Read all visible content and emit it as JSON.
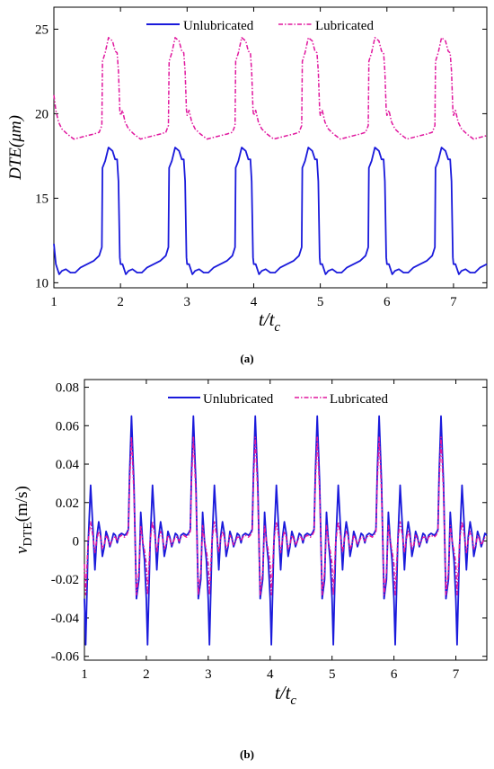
{
  "chart_data": [
    {
      "type": "line",
      "panel_label": "(a)",
      "ylabel": "DTE(μm)",
      "xlabel_main": "t/t",
      "xlabel_sub": "c",
      "xlim": [
        1,
        7.5
      ],
      "ylim": [
        9.7,
        26.3
      ],
      "xticks": [
        1,
        2,
        3,
        4,
        5,
        6,
        7
      ],
      "yticks": [
        10,
        15,
        20,
        25
      ],
      "legend": "top",
      "grid": false,
      "series": [
        {
          "name": "Unlubricated",
          "color": "#1a1adb",
          "dash": "solid",
          "period": 1,
          "x": [
            1.0,
            1.03,
            1.08,
            1.12,
            1.18,
            1.25,
            1.32,
            1.4,
            1.5,
            1.6,
            1.68,
            1.72,
            1.73,
            1.77,
            1.82,
            1.88,
            1.92,
            1.95,
            1.97,
            1.99,
            2.0
          ],
          "y": [
            12.3,
            11.1,
            10.5,
            10.7,
            10.8,
            10.6,
            10.6,
            10.9,
            11.1,
            11.3,
            11.6,
            12.1,
            16.8,
            17.2,
            18.0,
            17.8,
            17.3,
            17.3,
            16.0,
            11.5,
            11.1
          ]
        },
        {
          "name": "Lubricated",
          "color": "#e0179e",
          "dash": "5,2,1.5,2",
          "period": 1,
          "x": [
            1.0,
            1.03,
            1.07,
            1.12,
            1.2,
            1.3,
            1.4,
            1.5,
            1.6,
            1.68,
            1.72,
            1.73,
            1.77,
            1.82,
            1.88,
            1.92,
            1.95,
            1.97,
            1.99,
            2.0
          ],
          "y": [
            21.1,
            20.2,
            19.5,
            19.1,
            18.8,
            18.5,
            18.6,
            18.7,
            18.8,
            18.9,
            19.3,
            23.1,
            23.6,
            24.5,
            24.3,
            23.7,
            23.6,
            22.5,
            20.2,
            19.9
          ]
        }
      ]
    },
    {
      "type": "line",
      "panel_label": "(b)",
      "ylabel": "v",
      "ylabel_sub": "DTE",
      "ylabel_unit": "(m/s)",
      "xlabel_main": "t/t",
      "xlabel_sub": "c",
      "xlim": [
        1,
        7.5
      ],
      "ylim": [
        -0.062,
        0.084
      ],
      "xticks": [
        1,
        2,
        3,
        4,
        5,
        6,
        7
      ],
      "yticks": [
        -0.06,
        -0.04,
        -0.02,
        0,
        0.02,
        0.04,
        0.06,
        0.08
      ],
      "ytick_labels": [
        "-0.06",
        "-0.04",
        "-0.02",
        "0",
        "0.02",
        "0.04",
        "0.06",
        "0.08"
      ],
      "legend": "top",
      "grid": false,
      "series": [
        {
          "name": "Unlubricated",
          "color": "#1a1adb",
          "dash": "solid",
          "period": 1,
          "x": [
            1.0,
            1.02,
            1.06,
            1.1,
            1.14,
            1.17,
            1.2,
            1.23,
            1.26,
            1.29,
            1.32,
            1.35,
            1.38,
            1.41,
            1.44,
            1.47,
            1.5,
            1.53,
            1.56,
            1.6,
            1.65,
            1.68,
            1.71,
            1.73,
            1.76,
            1.8,
            1.84,
            1.88,
            1.91,
            1.94,
            1.97,
            2.0
          ],
          "y": [
            -0.03,
            -0.054,
            -0.002,
            0.029,
            0.005,
            -0.015,
            0.002,
            0.01,
            0.004,
            -0.008,
            -0.003,
            0.005,
            0.002,
            -0.003,
            0.0,
            0.004,
            0.003,
            -0.001,
            0.003,
            0.004,
            0.003,
            0.004,
            0.006,
            0.035,
            0.065,
            0.03,
            -0.03,
            -0.02,
            0.015,
            0.0,
            -0.01,
            -0.03
          ]
        },
        {
          "name": "Lubricated",
          "color": "#e0179e",
          "dash": "5,2,1.5,2",
          "period": 1,
          "x": [
            1.0,
            1.02,
            1.06,
            1.1,
            1.14,
            1.17,
            1.2,
            1.23,
            1.26,
            1.29,
            1.32,
            1.35,
            1.38,
            1.41,
            1.44,
            1.47,
            1.5,
            1.53,
            1.56,
            1.6,
            1.65,
            1.68,
            1.71,
            1.73,
            1.76,
            1.8,
            1.84,
            1.88,
            1.91,
            1.94,
            1.97,
            2.0
          ],
          "y": [
            -0.012,
            -0.028,
            0.0,
            0.01,
            0.002,
            -0.006,
            0.001,
            0.005,
            0.002,
            -0.004,
            -0.002,
            0.003,
            0.001,
            -0.002,
            0.0,
            0.002,
            0.002,
            0.0,
            0.002,
            0.003,
            0.002,
            0.003,
            0.005,
            0.03,
            0.054,
            0.025,
            -0.028,
            -0.016,
            0.008,
            0.0,
            -0.005,
            -0.012
          ]
        }
      ]
    }
  ]
}
